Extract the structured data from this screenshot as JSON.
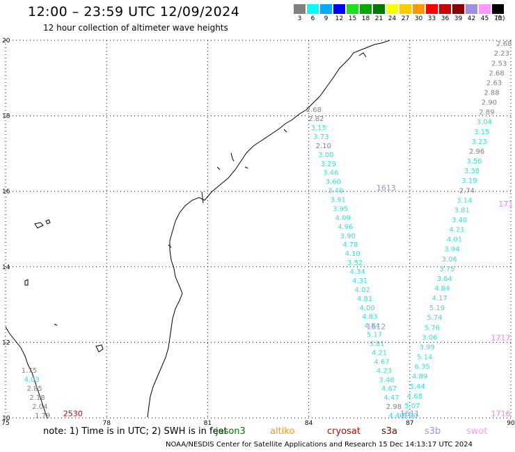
{
  "header": {
    "title": "12:00 – 23:59 UTC 12/09/2024",
    "subtitle": "12 hour collection of altimeter wave heights"
  },
  "legend": {
    "unit": "(ft)",
    "bins": [
      {
        "color": "#808080",
        "label": "3"
      },
      {
        "color": "#00ffff",
        "label": "6"
      },
      {
        "color": "#00aaff",
        "label": "9"
      },
      {
        "color": "#0000ff",
        "label": "12"
      },
      {
        "color": "#22dd22",
        "label": "15"
      },
      {
        "color": "#00aa00",
        "label": "18"
      },
      {
        "color": "#007700",
        "label": "21"
      },
      {
        "color": "#ffff00",
        "label": "24"
      },
      {
        "color": "#ffcc00",
        "label": "27"
      },
      {
        "color": "#ff9900",
        "label": "30"
      },
      {
        "color": "#ff0000",
        "label": "33"
      },
      {
        "color": "#cc0000",
        "label": "36"
      },
      {
        "color": "#880000",
        "label": "39"
      },
      {
        "color": "#a090e0",
        "label": "42"
      },
      {
        "color": "#ff99ff",
        "label": "45"
      },
      {
        "color": "#000000",
        "label": "70"
      }
    ]
  },
  "map": {
    "lon_ticks": [
      "75",
      "78",
      "81",
      "84",
      "87",
      "90"
    ],
    "lat_ticks": [
      "20",
      "18",
      "16",
      "14",
      "12",
      "10"
    ],
    "lon_range": [
      75,
      90
    ],
    "lat_range": [
      10,
      20
    ],
    "tracks": [
      {
        "name": "track-a",
        "color": "#3cdcdc",
        "lon_start": 84.15,
        "lon_end": 86.6,
        "lat_start": 18.1,
        "lat_end": 10.0,
        "values": [
          "2.68",
          "2.82",
          "3.15",
          "3.73",
          "2.10",
          "3.00",
          "3.29",
          "3.46",
          "3.60",
          "3.49",
          "3.91",
          "3.95",
          "4.09",
          "4.96",
          "3.90",
          "4.78",
          "4.10",
          "3.52",
          "4.34",
          "4.31",
          "4.02",
          "4.81",
          "4.00",
          "4.83",
          "4.84",
          "5.17",
          "3.81",
          "4.21",
          "4.67",
          "4.23",
          "3.48",
          "4.67",
          "4.47",
          "2.98",
          "4.40"
        ]
      },
      {
        "name": "track-b",
        "color": "#3cdcdc",
        "lon_start": 89.8,
        "lon_end": 87.0,
        "lat_start": 19.85,
        "lat_end": 10.0,
        "values": [
          "2.68",
          "2.23",
          "2.53",
          "2.68",
          "2.63",
          "2.88",
          "2.90",
          "2.89",
          "3.04",
          "3.15",
          "3.23",
          "2.96",
          "3.56",
          "3.38",
          "3.19",
          "2.74",
          "3.14",
          "3.81",
          "3.40",
          "4.21",
          "4.01",
          "3.94",
          "3.06",
          "3.75",
          "3.64",
          "4.84",
          "4.17",
          "5.19",
          "5.74",
          "5.76",
          "3.06",
          "3.99",
          "5.14",
          "6.35",
          "4.89",
          "5.44",
          "4.68",
          "5.07",
          "5.00"
        ]
      },
      {
        "name": "track-c",
        "color": "#3cdcdc",
        "lon_start": 75.7,
        "lon_end": 76.1,
        "lat_start": 11.2,
        "lat_end": 10.0,
        "values": [
          "1.75",
          "4.03",
          "2.85",
          "2.18",
          "2.04",
          "1.79"
        ]
      }
    ],
    "pass_ids": [
      {
        "text": "1613",
        "color": "#a090e0",
        "lon": 86.3,
        "lat": 16.02
      },
      {
        "text": "1612",
        "color": "#a090e0",
        "lon": 86.0,
        "lat": 12.35
      },
      {
        "text": "1611",
        "color": "#a090e0",
        "lon": 87.0,
        "lat": 10.05
      },
      {
        "text": "1717",
        "color": "#ff77ff",
        "lon": 89.7,
        "lat": 12.05
      },
      {
        "text": "1716",
        "color": "#ff77ff",
        "lon": 89.7,
        "lat": 10.05
      },
      {
        "text": "171",
        "color": "#ff77ff",
        "lon": 89.85,
        "lat": 15.6
      },
      {
        "text": "2530",
        "color": "#cc0000",
        "lon": 77.0,
        "lat": 10.05
      }
    ]
  },
  "footer": {
    "note": "note:  1) Time is in UTC;  2) SWH is in feet",
    "satellites": [
      {
        "name": "jason3",
        "color": "#007700"
      },
      {
        "name": "altiko",
        "color": "#ff9900"
      },
      {
        "name": "cryosat",
        "color": "#cc0000"
      },
      {
        "name": "s3a",
        "color": "#880000"
      },
      {
        "name": "s3b",
        "color": "#a090e0"
      },
      {
        "name": "swot",
        "color": "#ff99ff"
      }
    ],
    "credit": "NOAA/NESDIS Center for Satellite Applications and Research     15 Dec 14:13:17 UTC 2024"
  }
}
